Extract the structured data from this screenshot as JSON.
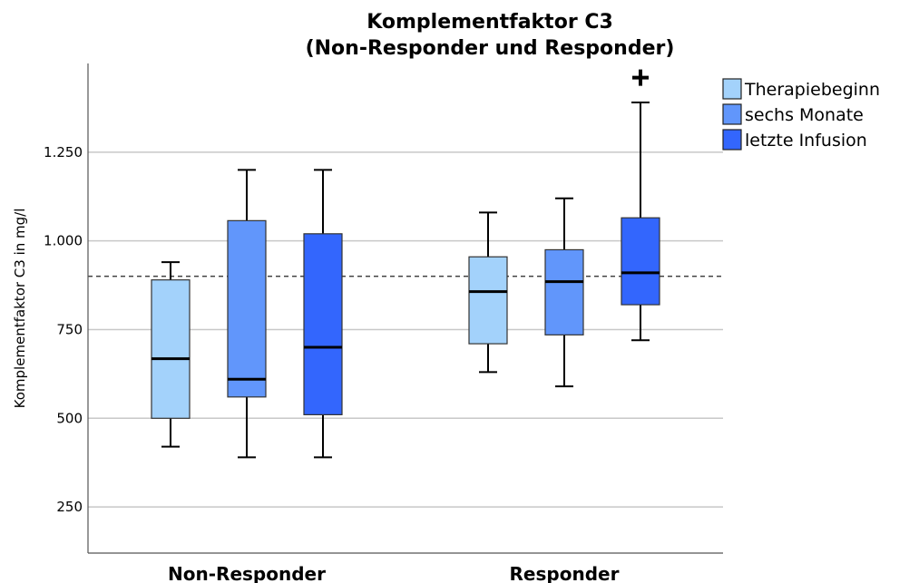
{
  "chart_data": {
    "type": "box",
    "title": [
      "Komplementfaktor C3",
      "(Non-Responder und Responder)"
    ],
    "ylabel": "Komplementfaktor C3 in mg/l",
    "xlabel": "",
    "ylim": [
      120,
      1500
    ],
    "yticks": [
      250,
      500,
      750,
      1000,
      1250
    ],
    "ytick_labels": [
      "250",
      "500",
      "750",
      "1.000",
      "1.250"
    ],
    "grid_y": true,
    "reference_line": 900,
    "categories": [
      "Non-Responder",
      "Responder"
    ],
    "legend_position": "top-right",
    "series": [
      {
        "name": "Therapiebeginn",
        "color": "#a3d2fb",
        "boxes": [
          {
            "whisker_low": 420,
            "q1": 500,
            "median": 668,
            "q3": 890,
            "whisker_high": 940,
            "outliers": []
          },
          {
            "whisker_low": 630,
            "q1": 710,
            "median": 857,
            "q3": 955,
            "whisker_high": 1080,
            "outliers": []
          }
        ]
      },
      {
        "name": "sechs Monate",
        "color": "#6196fb",
        "boxes": [
          {
            "whisker_low": 390,
            "q1": 560,
            "median": 610,
            "q3": 1057,
            "whisker_high": 1200,
            "outliers": []
          },
          {
            "whisker_low": 590,
            "q1": 735,
            "median": 885,
            "q3": 975,
            "whisker_high": 1120,
            "outliers": []
          }
        ]
      },
      {
        "name": "letzte Infusion",
        "color": "#3366fd",
        "boxes": [
          {
            "whisker_low": 390,
            "q1": 510,
            "median": 700,
            "q3": 1020,
            "whisker_high": 1200,
            "outliers": []
          },
          {
            "whisker_low": 720,
            "q1": 820,
            "median": 910,
            "q3": 1065,
            "whisker_high": 1390,
            "outliers": [
              1460
            ]
          }
        ]
      }
    ]
  }
}
